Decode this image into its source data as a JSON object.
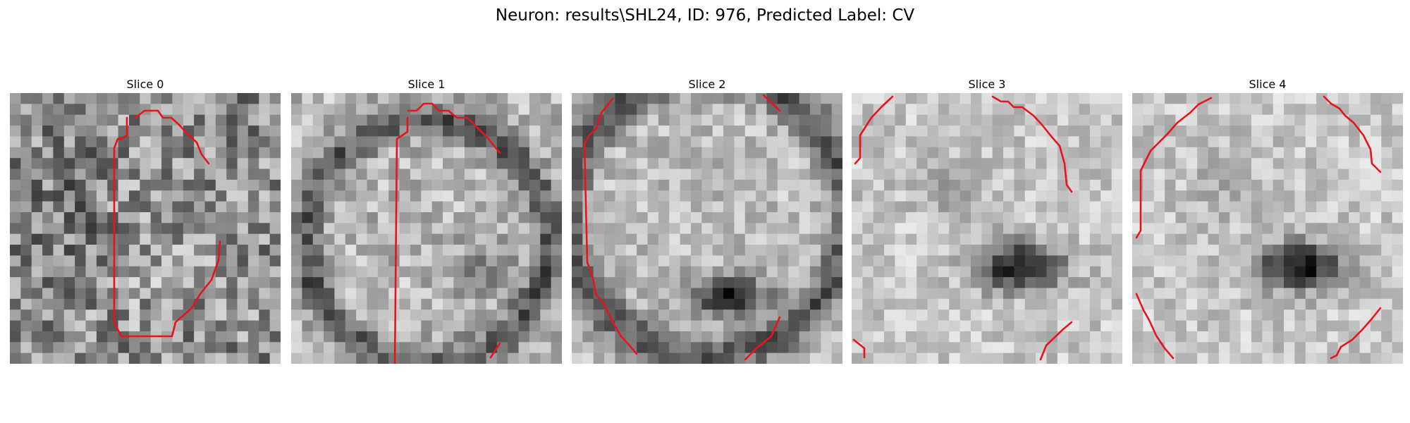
{
  "figure": {
    "suptitle": "Neuron: results\\SHL24, ID: 976, Predicted Label: CV",
    "contour_color": "#e8141b"
  },
  "slices": [
    {
      "title": "Slice 0",
      "pattern": "noisy",
      "contours": [
        [
          [
            178,
            35
          ],
          [
            191,
            25
          ],
          [
            210,
            25
          ],
          [
            217,
            35
          ],
          [
            229,
            35
          ],
          [
            240,
            45
          ],
          [
            252,
            58
          ],
          [
            265,
            70
          ],
          [
            272,
            87
          ],
          [
            282,
            100
          ]
        ],
        [
          [
            166,
            35
          ],
          [
            166,
            60
          ],
          [
            158,
            65
          ],
          [
            153,
            65
          ],
          [
            148,
            78
          ],
          [
            148,
            325
          ],
          [
            158,
            345
          ],
          [
            230,
            345
          ],
          [
            235,
            325
          ],
          [
            258,
            305
          ],
          [
            270,
            285
          ],
          [
            286,
            265
          ],
          [
            296,
            237
          ],
          [
            298,
            210
          ]
        ]
      ]
    },
    {
      "title": "Slice 1",
      "pattern": "rings",
      "contours": [
        [
          [
            165,
            35
          ],
          [
            165,
            55
          ],
          [
            150,
            65
          ],
          [
            147,
            390
          ]
        ],
        [
          [
            166,
            25
          ],
          [
            178,
            25
          ],
          [
            188,
            15
          ],
          [
            200,
            15
          ],
          [
            210,
            25
          ],
          [
            223,
            25
          ],
          [
            235,
            35
          ],
          [
            250,
            35
          ],
          [
            265,
            50
          ],
          [
            280,
            65
          ],
          [
            296,
            85
          ]
        ],
        [
          [
            296,
            355
          ],
          [
            283,
            375
          ]
        ]
      ]
    },
    {
      "title": "Slice 2",
      "pattern": "bigring",
      "contours": [
        [
          [
            58,
            8
          ],
          [
            42,
            28
          ],
          [
            35,
            50
          ],
          [
            25,
            60
          ],
          [
            18,
            72
          ],
          [
            22,
            240
          ],
          [
            30,
            262
          ],
          [
            34,
            285
          ],
          [
            46,
            300
          ],
          [
            58,
            325
          ],
          [
            70,
            345
          ],
          [
            82,
            358
          ],
          [
            92,
            370
          ]
        ],
        [
          [
            272,
            3
          ],
          [
            295,
            25
          ]
        ],
        [
          [
            295,
            318
          ],
          [
            283,
            345
          ],
          [
            262,
            362
          ],
          [
            246,
            378
          ]
        ]
      ]
    },
    {
      "title": "Slice 3",
      "pattern": "bright",
      "contours": [
        [
          [
            58,
            5
          ],
          [
            42,
            20
          ],
          [
            28,
            35
          ],
          [
            12,
            60
          ],
          [
            12,
            92
          ],
          [
            5,
            100
          ]
        ],
        [
          [
            200,
            5
          ],
          [
            212,
            12
          ],
          [
            222,
            12
          ],
          [
            230,
            20
          ],
          [
            242,
            20
          ],
          [
            258,
            32
          ],
          [
            270,
            45
          ],
          [
            282,
            60
          ],
          [
            295,
            75
          ],
          [
            302,
            100
          ],
          [
            305,
            130
          ],
          [
            312,
            140
          ]
        ],
        [
          [
            3,
            350
          ],
          [
            18,
            362
          ],
          [
            18,
            375
          ]
        ],
        [
          [
            312,
            325
          ],
          [
            300,
            335
          ],
          [
            276,
            358
          ],
          [
            268,
            378
          ]
        ]
      ]
    },
    {
      "title": "Slice 4",
      "pattern": "bright",
      "contours": [
        [
          [
            112,
            7
          ],
          [
            94,
            16
          ],
          [
            82,
            28
          ],
          [
            64,
            42
          ],
          [
            50,
            58
          ],
          [
            26,
            82
          ],
          [
            12,
            110
          ],
          [
            12,
            195
          ],
          [
            6,
            205
          ]
        ],
        [
          [
            272,
            5
          ],
          [
            282,
            15
          ],
          [
            294,
            22
          ],
          [
            302,
            32
          ],
          [
            314,
            42
          ],
          [
            328,
            60
          ],
          [
            338,
            80
          ],
          [
            340,
            100
          ],
          [
            352,
            112
          ]
        ],
        [
          [
            6,
            285
          ],
          [
            16,
            308
          ],
          [
            24,
            322
          ],
          [
            34,
            344
          ],
          [
            46,
            362
          ],
          [
            58,
            376
          ]
        ],
        [
          [
            352,
            305
          ],
          [
            340,
            320
          ],
          [
            326,
            336
          ],
          [
            312,
            350
          ],
          [
            296,
            360
          ],
          [
            290,
            372
          ],
          [
            282,
            376
          ]
        ]
      ]
    }
  ]
}
